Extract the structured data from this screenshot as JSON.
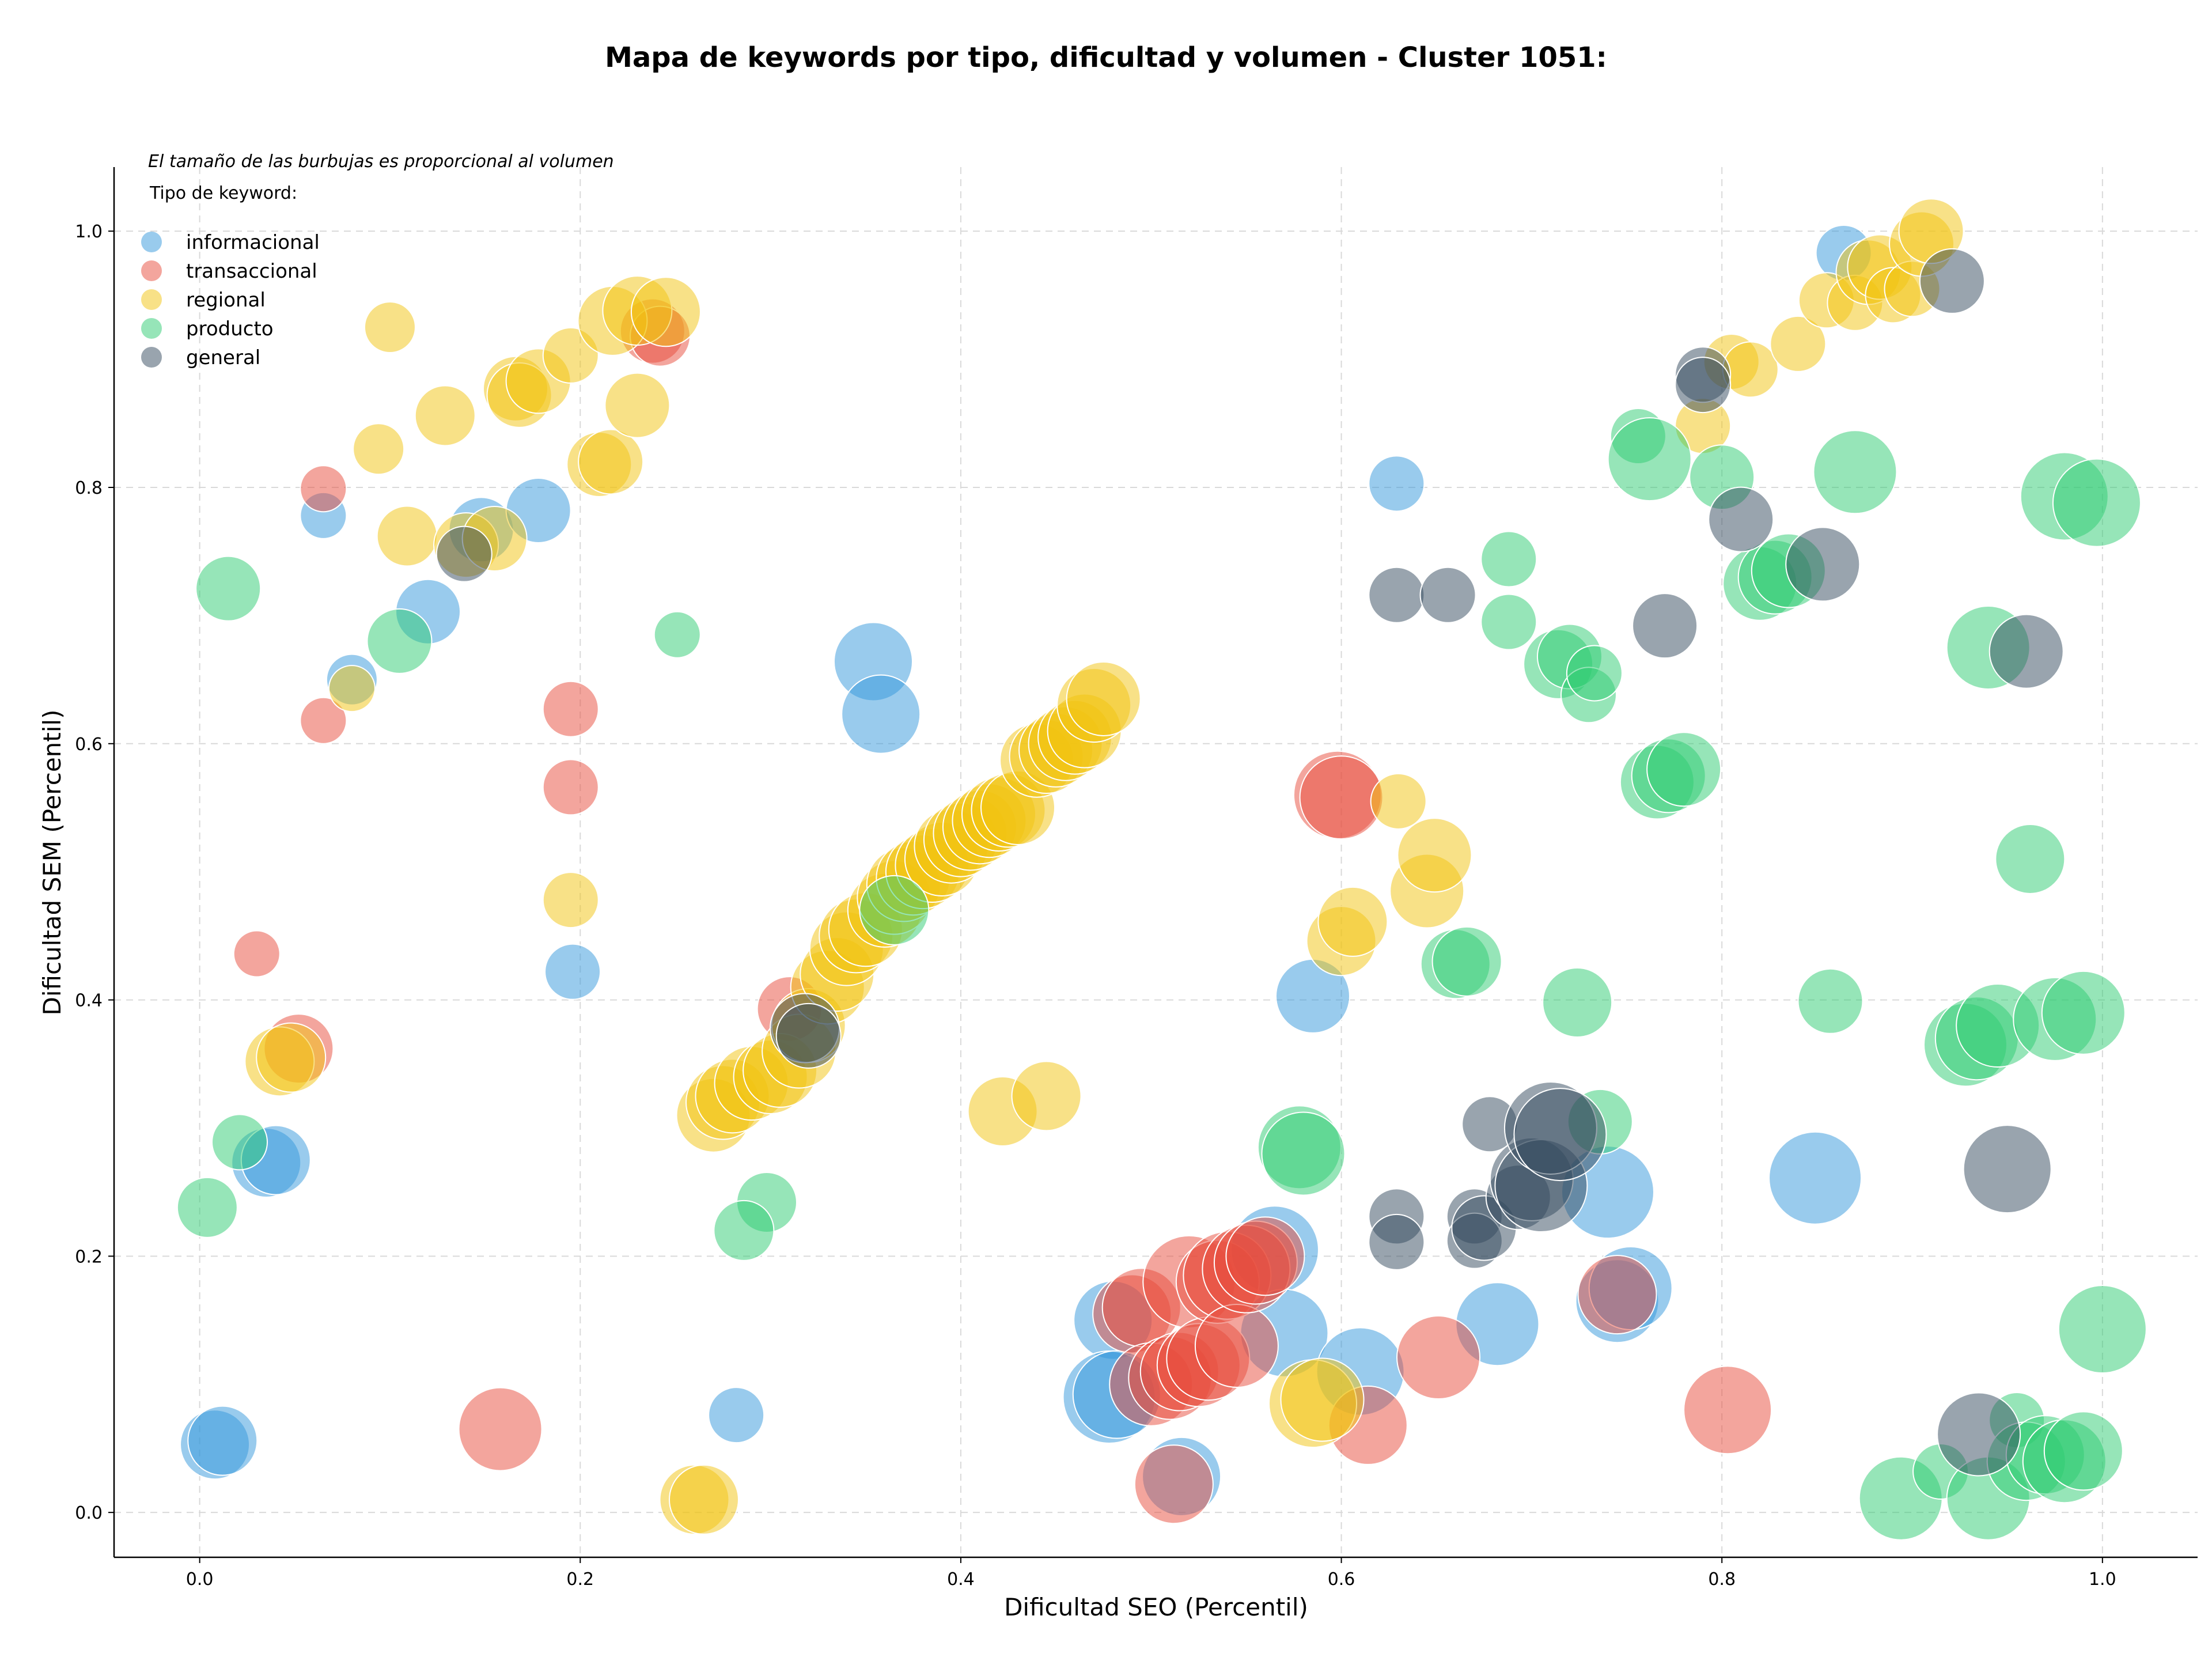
{
  "chart_data": {
    "type": "scatter",
    "title": "Mapa de keywords por tipo, dificultad y volumen - Cluster 1051:",
    "xlabel": "Dificultad SEO (Percentil)",
    "ylabel": "Dificultad SEM (Percentil)",
    "note": "El tamaño de las burbujas es proporcional al volumen",
    "legend_title": "Tipo de keyword:",
    "legend_position": "top-left",
    "xlim": [
      -0.045,
      1.05
    ],
    "ylim": [
      -0.035,
      1.05
    ],
    "xticks": [
      "0.0",
      "0.2",
      "0.4",
      "0.6",
      "0.8",
      "1.0"
    ],
    "yticks": [
      "0.0",
      "0.2",
      "0.4",
      "0.6",
      "0.8",
      "1.0"
    ],
    "grid": true,
    "series": [
      {
        "name": "informacional",
        "color": "#3498db",
        "points": [
          [
            0.065,
            0.778,
            0.25
          ],
          [
            0.08,
            0.65,
            0.3
          ],
          [
            0.12,
            0.703,
            0.45
          ],
          [
            0.148,
            0.767,
            0.45
          ],
          [
            0.178,
            0.782,
            0.45
          ],
          [
            0.035,
            0.273,
            0.5
          ],
          [
            0.04,
            0.275,
            0.5
          ],
          [
            0.008,
            0.053,
            0.5
          ],
          [
            0.012,
            0.056,
            0.5
          ],
          [
            0.196,
            0.422,
            0.35
          ],
          [
            0.282,
            0.076,
            0.35
          ],
          [
            0.354,
            0.664,
            0.6
          ],
          [
            0.358,
            0.623,
            0.6
          ],
          [
            0.585,
            0.403,
            0.55
          ],
          [
            0.629,
            0.803,
            0.35
          ],
          [
            0.48,
            0.15,
            0.6
          ],
          [
            0.478,
            0.09,
            0.75
          ],
          [
            0.482,
            0.092,
            0.7
          ],
          [
            0.516,
            0.028,
            0.6
          ],
          [
            0.565,
            0.205,
            0.7
          ],
          [
            0.57,
            0.14,
            0.7
          ],
          [
            0.61,
            0.11,
            0.7
          ],
          [
            0.682,
            0.147,
            0.65
          ],
          [
            0.74,
            0.25,
            0.75
          ],
          [
            0.745,
            0.165,
            0.65
          ],
          [
            0.752,
            0.175,
            0.65
          ],
          [
            0.849,
            0.261,
            0.75
          ],
          [
            0.864,
            0.983,
            0.35
          ]
        ]
      },
      {
        "name": "transaccional",
        "color": "#e74c3c",
        "points": [
          [
            0.065,
            0.799,
            0.25
          ],
          [
            0.065,
            0.618,
            0.25
          ],
          [
            0.03,
            0.436,
            0.25
          ],
          [
            0.052,
            0.362,
            0.5
          ],
          [
            0.195,
            0.627,
            0.35
          ],
          [
            0.195,
            0.566,
            0.35
          ],
          [
            0.238,
            0.922,
            0.45
          ],
          [
            0.242,
            0.918,
            0.4
          ],
          [
            0.158,
            0.065,
            0.65
          ],
          [
            0.31,
            0.393,
            0.45
          ],
          [
            0.49,
            0.155,
            0.6
          ],
          [
            0.495,
            0.16,
            0.6
          ],
          [
            0.5,
            0.1,
            0.65
          ],
          [
            0.51,
            0.105,
            0.65
          ],
          [
            0.515,
            0.11,
            0.6
          ],
          [
            0.52,
            0.18,
            0.75
          ],
          [
            0.525,
            0.115,
            0.65
          ],
          [
            0.53,
            0.12,
            0.65
          ],
          [
            0.535,
            0.18,
            0.65
          ],
          [
            0.54,
            0.185,
            0.7
          ],
          [
            0.545,
            0.13,
            0.65
          ],
          [
            0.55,
            0.19,
            0.7
          ],
          [
            0.555,
            0.195,
            0.65
          ],
          [
            0.56,
            0.2,
            0.6
          ],
          [
            0.512,
            0.022,
            0.6
          ],
          [
            0.598,
            0.56,
            0.7
          ],
          [
            0.6,
            0.558,
            0.65
          ],
          [
            0.614,
            0.068,
            0.6
          ],
          [
            0.651,
            0.121,
            0.65
          ],
          [
            0.745,
            0.17,
            0.6
          ],
          [
            0.803,
            0.08,
            0.7
          ]
        ]
      },
      {
        "name": "regional",
        "color": "#f1c40f",
        "points": [
          [
            0.1,
            0.925,
            0.3
          ],
          [
            0.094,
            0.83,
            0.3
          ],
          [
            0.08,
            0.643,
            0.25
          ],
          [
            0.109,
            0.762,
            0.4
          ],
          [
            0.129,
            0.856,
            0.4
          ],
          [
            0.14,
            0.755,
            0.45
          ],
          [
            0.155,
            0.76,
            0.45
          ],
          [
            0.166,
            0.877,
            0.45
          ],
          [
            0.168,
            0.872,
            0.45
          ],
          [
            0.178,
            0.883,
            0.45
          ],
          [
            0.195,
            0.903,
            0.35
          ],
          [
            0.21,
            0.818,
            0.45
          ],
          [
            0.216,
            0.82,
            0.45
          ],
          [
            0.217,
            0.93,
            0.5
          ],
          [
            0.23,
            0.938,
            0.5
          ],
          [
            0.23,
            0.864,
            0.45
          ],
          [
            0.245,
            0.937,
            0.5
          ],
          [
            0.195,
            0.478,
            0.35
          ],
          [
            0.042,
            0.352,
            0.5
          ],
          [
            0.048,
            0.355,
            0.5
          ],
          [
            0.26,
            0.01,
            0.5
          ],
          [
            0.265,
            0.01,
            0.5
          ],
          [
            0.27,
            0.31,
            0.55
          ],
          [
            0.275,
            0.32,
            0.55
          ],
          [
            0.28,
            0.325,
            0.55
          ],
          [
            0.29,
            0.335,
            0.55
          ],
          [
            0.3,
            0.34,
            0.55
          ],
          [
            0.305,
            0.345,
            0.55
          ],
          [
            0.315,
            0.36,
            0.55
          ],
          [
            0.32,
            0.38,
            0.55
          ],
          [
            0.33,
            0.41,
            0.55
          ],
          [
            0.335,
            0.42,
            0.55
          ],
          [
            0.34,
            0.44,
            0.55
          ],
          [
            0.345,
            0.45,
            0.55
          ],
          [
            0.35,
            0.455,
            0.55
          ],
          [
            0.36,
            0.47,
            0.55
          ],
          [
            0.365,
            0.48,
            0.55
          ],
          [
            0.37,
            0.49,
            0.55
          ],
          [
            0.375,
            0.495,
            0.55
          ],
          [
            0.38,
            0.5,
            0.55
          ],
          [
            0.385,
            0.505,
            0.55
          ],
          [
            0.39,
            0.51,
            0.55
          ],
          [
            0.395,
            0.52,
            0.55
          ],
          [
            0.4,
            0.525,
            0.55
          ],
          [
            0.405,
            0.53,
            0.55
          ],
          [
            0.41,
            0.535,
            0.55
          ],
          [
            0.415,
            0.54,
            0.55
          ],
          [
            0.42,
            0.545,
            0.55
          ],
          [
            0.425,
            0.548,
            0.55
          ],
          [
            0.43,
            0.55,
            0.55
          ],
          [
            0.44,
            0.587,
            0.55
          ],
          [
            0.445,
            0.59,
            0.55
          ],
          [
            0.45,
            0.595,
            0.55
          ],
          [
            0.455,
            0.6,
            0.55
          ],
          [
            0.46,
            0.605,
            0.55
          ],
          [
            0.465,
            0.61,
            0.55
          ],
          [
            0.47,
            0.63,
            0.55
          ],
          [
            0.475,
            0.635,
            0.55
          ],
          [
            0.422,
            0.313,
            0.5
          ],
          [
            0.445,
            0.325,
            0.5
          ],
          [
            0.585,
            0.085,
            0.7
          ],
          [
            0.59,
            0.088,
            0.65
          ],
          [
            0.6,
            0.446,
            0.5
          ],
          [
            0.606,
            0.461,
            0.5
          ],
          [
            0.63,
            0.555,
            0.35
          ],
          [
            0.645,
            0.485,
            0.55
          ],
          [
            0.649,
            0.513,
            0.55
          ],
          [
            0.805,
            0.898,
            0.35
          ],
          [
            0.815,
            0.892,
            0.35
          ],
          [
            0.79,
            0.848,
            0.35
          ],
          [
            0.84,
            0.912,
            0.35
          ],
          [
            0.855,
            0.946,
            0.35
          ],
          [
            0.87,
            0.944,
            0.35
          ],
          [
            0.877,
            0.968,
            0.45
          ],
          [
            0.883,
            0.972,
            0.45
          ],
          [
            0.89,
            0.95,
            0.35
          ],
          [
            0.9,
            0.955,
            0.35
          ],
          [
            0.905,
            0.99,
            0.45
          ],
          [
            0.91,
            1.0,
            0.45
          ]
        ]
      },
      {
        "name": "producto",
        "color": "#2ecc71",
        "points": [
          [
            0.015,
            0.721,
            0.45
          ],
          [
            0.105,
            0.68,
            0.45
          ],
          [
            0.021,
            0.289,
            0.35
          ],
          [
            0.004,
            0.238,
            0.4
          ],
          [
            0.251,
            0.685,
            0.25
          ],
          [
            0.298,
            0.242,
            0.4
          ],
          [
            0.286,
            0.22,
            0.4
          ],
          [
            0.365,
            0.47,
            0.5
          ],
          [
            0.578,
            0.285,
            0.65
          ],
          [
            0.58,
            0.28,
            0.65
          ],
          [
            0.66,
            0.428,
            0.5
          ],
          [
            0.666,
            0.43,
            0.5
          ],
          [
            0.688,
            0.744,
            0.35
          ],
          [
            0.688,
            0.695,
            0.35
          ],
          [
            0.714,
            0.662,
            0.5
          ],
          [
            0.72,
            0.668,
            0.45
          ],
          [
            0.724,
            0.398,
            0.5
          ],
          [
            0.73,
            0.638,
            0.35
          ],
          [
            0.733,
            0.655,
            0.35
          ],
          [
            0.736,
            0.305,
            0.45
          ],
          [
            0.756,
            0.84,
            0.35
          ],
          [
            0.762,
            0.822,
            0.65
          ],
          [
            0.766,
            0.57,
            0.55
          ],
          [
            0.772,
            0.575,
            0.55
          ],
          [
            0.78,
            0.58,
            0.55
          ],
          [
            0.8,
            0.808,
            0.45
          ],
          [
            0.82,
            0.725,
            0.55
          ],
          [
            0.828,
            0.73,
            0.55
          ],
          [
            0.835,
            0.735,
            0.55
          ],
          [
            0.87,
            0.812,
            0.65
          ],
          [
            0.857,
            0.399,
            0.45
          ],
          [
            0.894,
            0.011,
            0.65
          ],
          [
            0.915,
            0.032,
            0.35
          ],
          [
            0.928,
            0.365,
            0.65
          ],
          [
            0.934,
            0.37,
            0.65
          ],
          [
            0.94,
            0.011,
            0.65
          ],
          [
            0.945,
            0.38,
            0.65
          ],
          [
            0.94,
            0.675,
            0.65
          ],
          [
            0.955,
            0.072,
            0.35
          ],
          [
            0.962,
            0.51,
            0.5
          ],
          [
            0.96,
            0.04,
            0.6
          ],
          [
            0.97,
            0.045,
            0.6
          ],
          [
            0.975,
            0.385,
            0.65
          ],
          [
            0.98,
            0.04,
            0.65
          ],
          [
            0.98,
            0.793,
            0.7
          ],
          [
            0.99,
            0.048,
            0.6
          ],
          [
            0.99,
            0.39,
            0.65
          ],
          [
            0.997,
            0.788,
            0.7
          ],
          [
            1.0,
            0.143,
            0.7
          ]
        ]
      },
      {
        "name": "general",
        "color": "#34495e",
        "points": [
          [
            0.139,
            0.748,
            0.35
          ],
          [
            0.318,
            0.378,
            0.5
          ],
          [
            0.32,
            0.372,
            0.45
          ],
          [
            0.629,
            0.716,
            0.35
          ],
          [
            0.629,
            0.231,
            0.35
          ],
          [
            0.629,
            0.211,
            0.35
          ],
          [
            0.656,
            0.716,
            0.35
          ],
          [
            0.67,
            0.231,
            0.35
          ],
          [
            0.67,
            0.212,
            0.35
          ],
          [
            0.675,
            0.222,
            0.45
          ],
          [
            0.678,
            0.303,
            0.35
          ],
          [
            0.693,
            0.246,
            0.45
          ],
          [
            0.7,
            0.26,
            0.65
          ],
          [
            0.705,
            0.255,
            0.75
          ],
          [
            0.71,
            0.3,
            0.75
          ],
          [
            0.715,
            0.295,
            0.75
          ],
          [
            0.77,
            0.692,
            0.45
          ],
          [
            0.79,
            0.888,
            0.35
          ],
          [
            0.79,
            0.88,
            0.35
          ],
          [
            0.81,
            0.775,
            0.45
          ],
          [
            0.853,
            0.74,
            0.55
          ],
          [
            0.921,
            0.961,
            0.45
          ],
          [
            0.935,
            0.061,
            0.65
          ],
          [
            0.95,
            0.268,
            0.7
          ],
          [
            0.96,
            0.672,
            0.55
          ]
        ]
      }
    ]
  }
}
